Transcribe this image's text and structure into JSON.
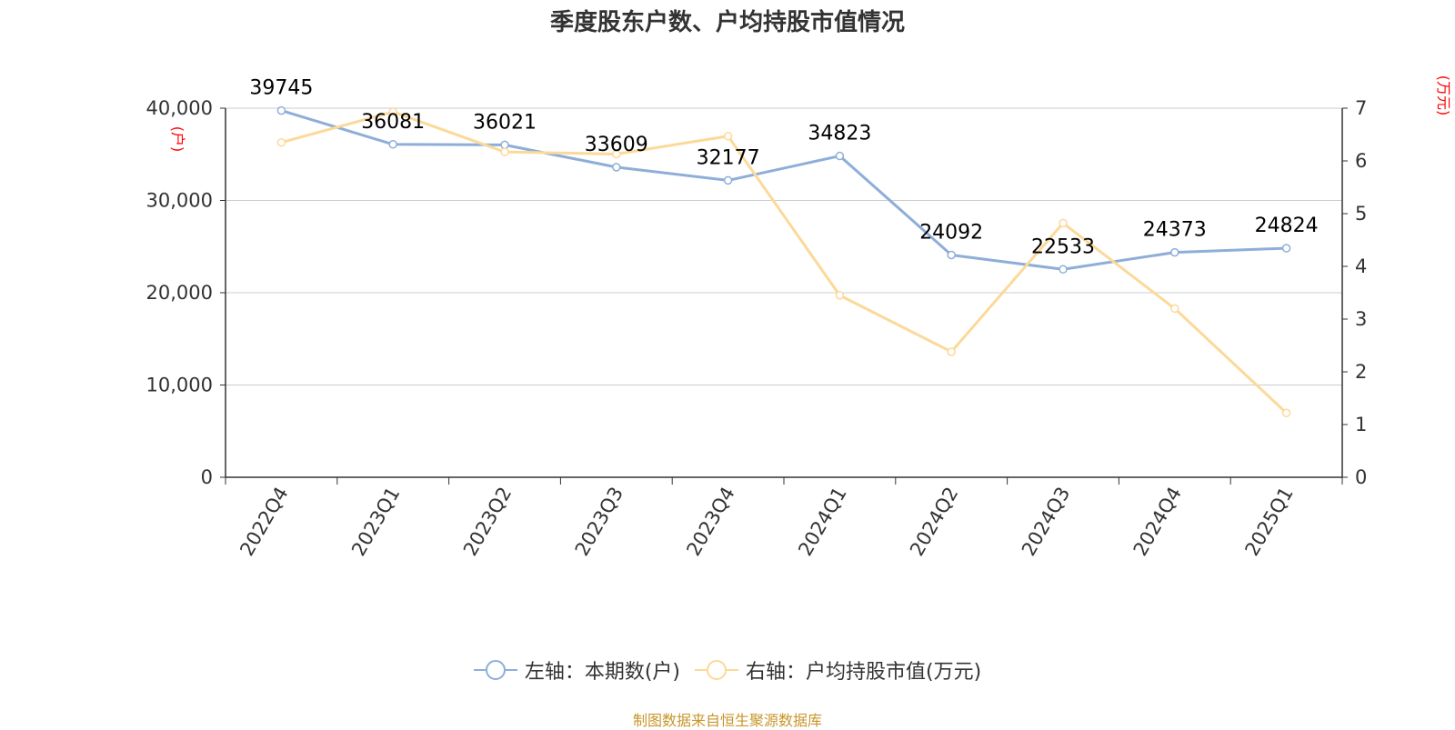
{
  "chart_data": {
    "type": "line",
    "title": "季度股东户数、户均持股市值情况",
    "categories": [
      "2022Q4",
      "2023Q1",
      "2023Q2",
      "2023Q3",
      "2023Q4",
      "2024Q1",
      "2024Q2",
      "2024Q3",
      "2024Q4",
      "2025Q1"
    ],
    "left_axis": {
      "unit_label": "(户)",
      "ylim": [
        0,
        40000
      ],
      "ticks": [
        "0",
        "10,000",
        "20,000",
        "30,000",
        "40,000"
      ],
      "tick_values": [
        0,
        10000,
        20000,
        30000,
        40000
      ]
    },
    "right_axis": {
      "unit_label": "(万元)",
      "ylim": [
        0,
        7
      ],
      "ticks": [
        "0",
        "1",
        "2",
        "3",
        "4",
        "5",
        "6",
        "7"
      ],
      "tick_values": [
        0,
        1,
        2,
        3,
        4,
        5,
        6,
        7
      ]
    },
    "grid": true,
    "legend_position": "bottom",
    "series": [
      {
        "name": "左轴：本期数(户)",
        "axis": "left",
        "color": "#8eaed9",
        "values": [
          39745,
          36081,
          36021,
          33609,
          32177,
          34823,
          24092,
          22533,
          24373,
          24824
        ],
        "labels": [
          "39745",
          "36081",
          "36021",
          "33609",
          "32177",
          "34823",
          "24092",
          "22533",
          "24373",
          "24824"
        ]
      },
      {
        "name": "右轴：户均持股市值(万元)",
        "axis": "right",
        "color": "#fcd999",
        "values": [
          6.35,
          6.93,
          6.17,
          6.13,
          6.47,
          3.45,
          2.38,
          4.82,
          3.2,
          1.22
        ]
      }
    ]
  },
  "source": "制图数据来自恒生聚源数据库"
}
